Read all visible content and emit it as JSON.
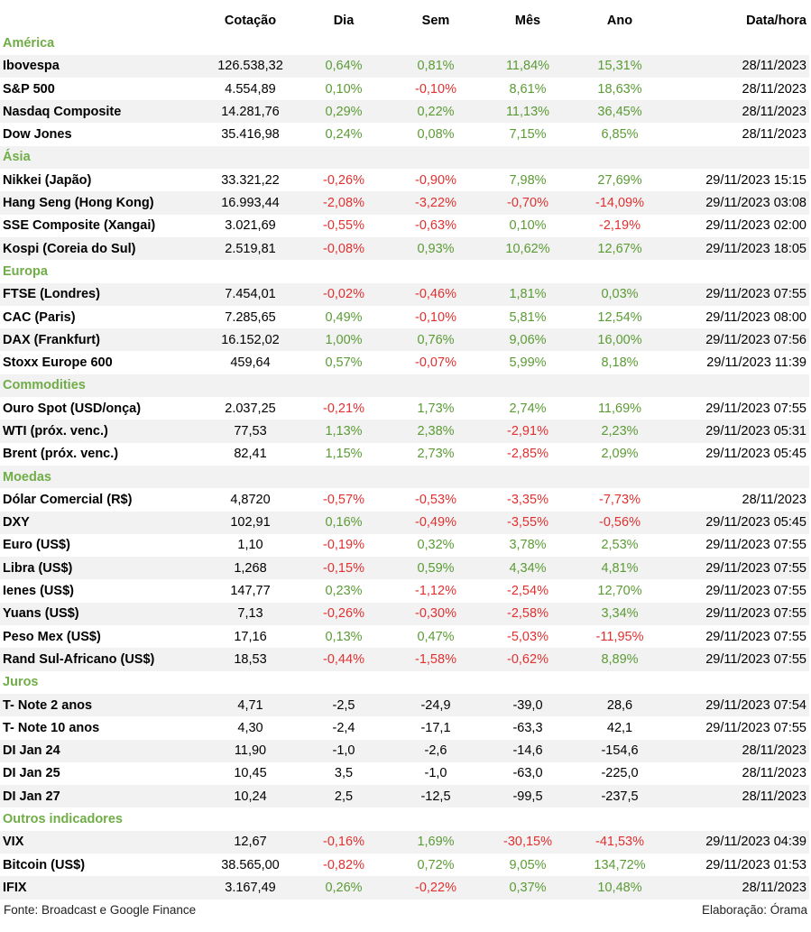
{
  "header": [
    "Cotação",
    "Dia",
    "Sem",
    "Mês",
    "Ano",
    "Data/hora"
  ],
  "sections": [
    {
      "title": "América",
      "colored": true,
      "rows": [
        [
          "Ibovespa",
          "126.538,32",
          "0,64%",
          "0,81%",
          "11,84%",
          "15,31%",
          "28/11/2023"
        ],
        [
          "S&P 500",
          "4.554,89",
          "0,10%",
          "-0,10%",
          "8,61%",
          "18,63%",
          "28/11/2023"
        ],
        [
          "Nasdaq Composite",
          "14.281,76",
          "0,29%",
          "0,22%",
          "11,13%",
          "36,45%",
          "28/11/2023"
        ],
        [
          "Dow Jones",
          "35.416,98",
          "0,24%",
          "0,08%",
          "7,15%",
          "6,85%",
          "28/11/2023"
        ]
      ]
    },
    {
      "title": "Ásia",
      "colored": true,
      "rows": [
        [
          "Nikkei (Japão)",
          "33.321,22",
          "-0,26%",
          "-0,90%",
          "7,98%",
          "27,69%",
          "29/11/2023 15:15"
        ],
        [
          "Hang Seng (Hong Kong)",
          "16.993,44",
          "-2,08%",
          "-3,22%",
          "-0,70%",
          "-14,09%",
          "29/11/2023 03:08"
        ],
        [
          "SSE Composite (Xangai)",
          "3.021,69",
          "-0,55%",
          "-0,63%",
          "0,10%",
          "-2,19%",
          "29/11/2023 02:00"
        ],
        [
          "Kospi (Coreia do Sul)",
          "2.519,81",
          "-0,08%",
          "0,93%",
          "10,62%",
          "12,67%",
          "29/11/2023 18:05"
        ]
      ]
    },
    {
      "title": "Europa",
      "colored": true,
      "rows": [
        [
          "FTSE (Londres)",
          "7.454,01",
          "-0,02%",
          "-0,46%",
          "1,81%",
          "0,03%",
          "29/11/2023 07:55"
        ],
        [
          "CAC (Paris)",
          "7.285,65",
          "0,49%",
          "-0,10%",
          "5,81%",
          "12,54%",
          "29/11/2023 08:00"
        ],
        [
          "DAX (Frankfurt)",
          "16.152,02",
          "1,00%",
          "0,76%",
          "9,06%",
          "16,00%",
          "29/11/2023 07:56"
        ],
        [
          "Stoxx Europe 600",
          "459,64",
          "0,57%",
          "-0,07%",
          "5,99%",
          "8,18%",
          "29/11/2023 11:39"
        ]
      ]
    },
    {
      "title": "Commodities",
      "colored": true,
      "rows": [
        [
          "Ouro Spot (USD/onça)",
          "2.037,25",
          "-0,21%",
          "1,73%",
          "2,74%",
          "11,69%",
          "29/11/2023 07:55"
        ],
        [
          "WTI (próx. venc.)",
          "77,53",
          "1,13%",
          "2,38%",
          "-2,91%",
          "2,23%",
          "29/11/2023 05:31"
        ],
        [
          "Brent (próx. venc.)",
          "82,41",
          "1,15%",
          "2,73%",
          "-2,85%",
          "2,09%",
          "29/11/2023 05:45"
        ]
      ]
    },
    {
      "title": "Moedas",
      "colored": true,
      "rows": [
        [
          "Dólar Comercial (R$)",
          "4,8720",
          "-0,57%",
          "-0,53%",
          "-3,35%",
          "-7,73%",
          "28/11/2023"
        ],
        [
          "DXY",
          "102,91",
          "0,16%",
          "-0,49%",
          "-3,55%",
          "-0,56%",
          "29/11/2023 05:45"
        ],
        [
          "Euro (US$)",
          "1,10",
          "-0,19%",
          "0,32%",
          "3,78%",
          "2,53%",
          "29/11/2023 07:55"
        ],
        [
          "Libra (US$)",
          "1,268",
          "-0,15%",
          "0,59%",
          "4,34%",
          "4,81%",
          "29/11/2023 07:55"
        ],
        [
          "Ienes (US$)",
          "147,77",
          "0,23%",
          "-1,12%",
          "-2,54%",
          "12,70%",
          "29/11/2023 07:55"
        ],
        [
          "Yuans (US$)",
          "7,13",
          "-0,26%",
          "-0,30%",
          "-2,58%",
          "3,34%",
          "29/11/2023 07:55"
        ],
        [
          "Peso Mex (US$)",
          "17,16",
          "0,13%",
          "0,47%",
          "-5,03%",
          "-11,95%",
          "29/11/2023 07:55"
        ],
        [
          "Rand Sul-Africano (US$)",
          "18,53",
          "-0,44%",
          "-1,58%",
          "-0,62%",
          "8,89%",
          "29/11/2023 07:55"
        ]
      ]
    },
    {
      "title": "Juros",
      "colored": false,
      "rows": [
        [
          "T- Note 2 anos",
          "4,71",
          "-2,5",
          "-24,9",
          "-39,0",
          "28,6",
          "29/11/2023 07:54"
        ],
        [
          "T- Note 10 anos",
          "4,30",
          "-2,4",
          "-17,1",
          "-63,3",
          "42,1",
          "29/11/2023 07:55"
        ],
        [
          "DI Jan 24",
          "11,90",
          "-1,0",
          "-2,6",
          "-14,6",
          "-154,6",
          "28/11/2023"
        ],
        [
          "DI Jan 25",
          "10,45",
          "3,5",
          "-1,0",
          "-63,0",
          "-225,0",
          "28/11/2023"
        ],
        [
          "DI Jan 27",
          "10,24",
          "2,5",
          "-12,5",
          "-99,5",
          "-237,5",
          "28/11/2023"
        ]
      ]
    },
    {
      "title": "Outros indicadores",
      "colored": true,
      "rows": [
        [
          "VIX",
          "12,67",
          "-0,16%",
          "1,69%",
          "-30,15%",
          "-41,53%",
          "29/11/2023 04:39"
        ],
        [
          "Bitcoin (US$)",
          "38.565,00",
          "-0,82%",
          "0,72%",
          "9,05%",
          "134,72%",
          "29/11/2023 01:53"
        ],
        [
          "IFIX",
          "3.167,49",
          "0,26%",
          "-0,22%",
          "0,37%",
          "10,48%",
          "28/11/2023"
        ]
      ]
    }
  ],
  "footer": {
    "source": "Fonte: Broadcast e Google Finance",
    "credit": "Elaboração: Órama"
  }
}
